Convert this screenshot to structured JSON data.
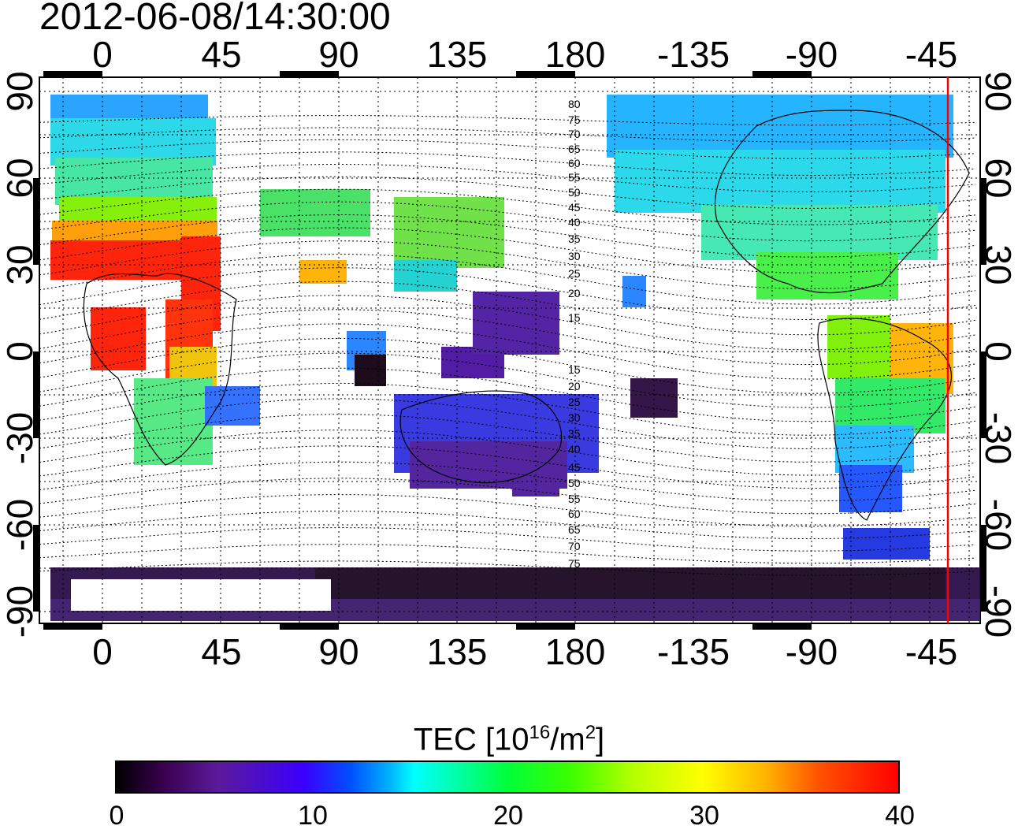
{
  "title": "2012-06-08/14:30:00",
  "map": {
    "top_lon_ticks": [
      "0",
      "45",
      "90",
      "135",
      "180",
      "-135",
      "-90",
      "-45"
    ],
    "bottom_lon_ticks": [
      "0",
      "45",
      "90",
      "135",
      "180",
      "-135",
      "-90",
      "-45"
    ],
    "left_lat_ticks": [
      "90",
      "60",
      "30",
      "0",
      "-30",
      "-60",
      "-90"
    ],
    "right_lat_ticks": [
      "90",
      "60",
      "30",
      "0",
      "-30",
      "-60",
      "-90"
    ],
    "contour_labels": [
      "80",
      "75",
      "70",
      "65",
      "60",
      "55",
      "50",
      "45",
      "40",
      "35",
      "30",
      "25",
      "20",
      "15",
      "15",
      "20",
      "25",
      "30",
      "35",
      "40",
      "45",
      "50",
      "55",
      "60",
      "65",
      "70",
      "75"
    ],
    "terminator_color": "#ff0000",
    "lon_ticks_values": [
      0,
      45,
      90,
      135,
      180,
      -135,
      -90,
      -45
    ],
    "lat_ticks_values": [
      90,
      60,
      30,
      0,
      -30,
      -60,
      -90
    ]
  },
  "colorbar": {
    "label_main": "TEC  [10",
    "label_sup1": "16",
    "label_mid": "/m",
    "label_sup2": "2",
    "label_end": "]",
    "ticks": [
      "0",
      "10",
      "20",
      "30",
      "40"
    ],
    "min": 0,
    "max": 40,
    "colormap": [
      "#000000",
      "#5b1a9a",
      "#0050ff",
      "#00ffff",
      "#00ff3a",
      "#b4ff00",
      "#ffff00",
      "#ff5000",
      "#ff0000"
    ]
  }
}
